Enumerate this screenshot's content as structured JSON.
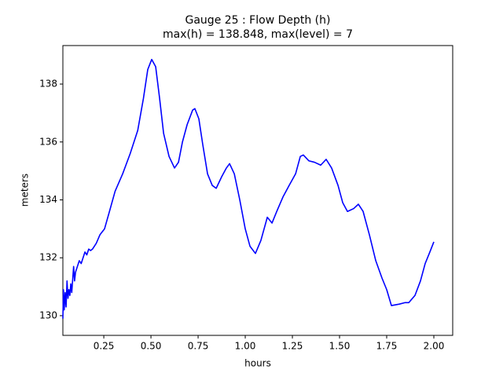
{
  "chart_data": {
    "type": "line",
    "title": "Gauge 25 : Flow Depth (h)",
    "subtitle": "max(h) = 138.848,    max(level) = 7",
    "x_label": "hours",
    "y_label": "meters",
    "x": [
      0.033,
      0.036,
      0.04,
      0.045,
      0.05,
      0.055,
      0.06,
      0.065,
      0.07,
      0.075,
      0.08,
      0.09,
      0.095,
      0.1,
      0.11,
      0.12,
      0.13,
      0.14,
      0.15,
      0.16,
      0.17,
      0.18,
      0.19,
      0.21,
      0.23,
      0.254,
      0.28,
      0.31,
      0.35,
      0.39,
      0.43,
      0.46,
      0.483,
      0.504,
      0.525,
      0.546,
      0.567,
      0.596,
      0.625,
      0.646,
      0.667,
      0.692,
      0.721,
      0.733,
      0.754,
      0.775,
      0.8,
      0.825,
      0.846,
      0.875,
      0.9,
      0.917,
      0.942,
      0.971,
      1.0,
      1.025,
      1.054,
      1.083,
      1.117,
      1.142,
      1.167,
      1.2,
      1.233,
      1.267,
      1.292,
      1.308,
      1.337,
      1.367,
      1.4,
      1.429,
      1.458,
      1.492,
      1.517,
      1.542,
      1.575,
      1.6,
      1.625,
      1.658,
      1.692,
      1.725,
      1.75,
      1.775,
      1.817,
      1.846,
      1.867,
      1.9,
      1.929,
      1.954,
      1.979,
      2.0
    ],
    "series": [
      {
        "name": "h",
        "color": "#0000ff",
        "values": [
          129.9,
          130.9,
          130.2,
          130.8,
          130.3,
          131.2,
          130.6,
          130.9,
          130.7,
          131.1,
          130.8,
          131.7,
          131.2,
          131.5,
          131.7,
          131.9,
          131.8,
          132.0,
          132.2,
          132.1,
          132.3,
          132.25,
          132.3,
          132.5,
          132.8,
          133.0,
          133.6,
          134.3,
          134.9,
          135.6,
          136.4,
          137.5,
          138.5,
          138.85,
          138.6,
          137.5,
          136.3,
          135.5,
          135.1,
          135.3,
          136.0,
          136.6,
          137.1,
          137.15,
          136.8,
          135.9,
          134.9,
          134.5,
          134.4,
          134.8,
          135.1,
          135.25,
          134.9,
          134.0,
          133.0,
          132.4,
          132.15,
          132.6,
          133.4,
          133.2,
          133.6,
          134.1,
          134.5,
          134.9,
          135.5,
          135.55,
          135.35,
          135.3,
          135.2,
          135.4,
          135.1,
          134.5,
          133.9,
          133.6,
          133.7,
          133.85,
          133.6,
          132.8,
          131.9,
          131.3,
          130.9,
          130.35,
          130.4,
          130.45,
          130.45,
          130.7,
          131.2,
          131.8,
          132.2,
          132.55
        ]
      }
    ],
    "xlim": [
      0.033,
      2.1
    ],
    "ylim": [
      129.32,
      139.33
    ],
    "xticks": [
      {
        "value": 0.25,
        "label": "0.25"
      },
      {
        "value": 0.5,
        "label": "0.50"
      },
      {
        "value": 0.75,
        "label": "0.75"
      },
      {
        "value": 1.0,
        "label": "1.00"
      },
      {
        "value": 1.25,
        "label": "1.25"
      },
      {
        "value": 1.5,
        "label": "1.50"
      },
      {
        "value": 1.75,
        "label": "1.75"
      },
      {
        "value": 2.0,
        "label": "2.00"
      }
    ],
    "yticks": [
      130,
      132,
      134,
      136,
      138
    ],
    "grid": false
  }
}
